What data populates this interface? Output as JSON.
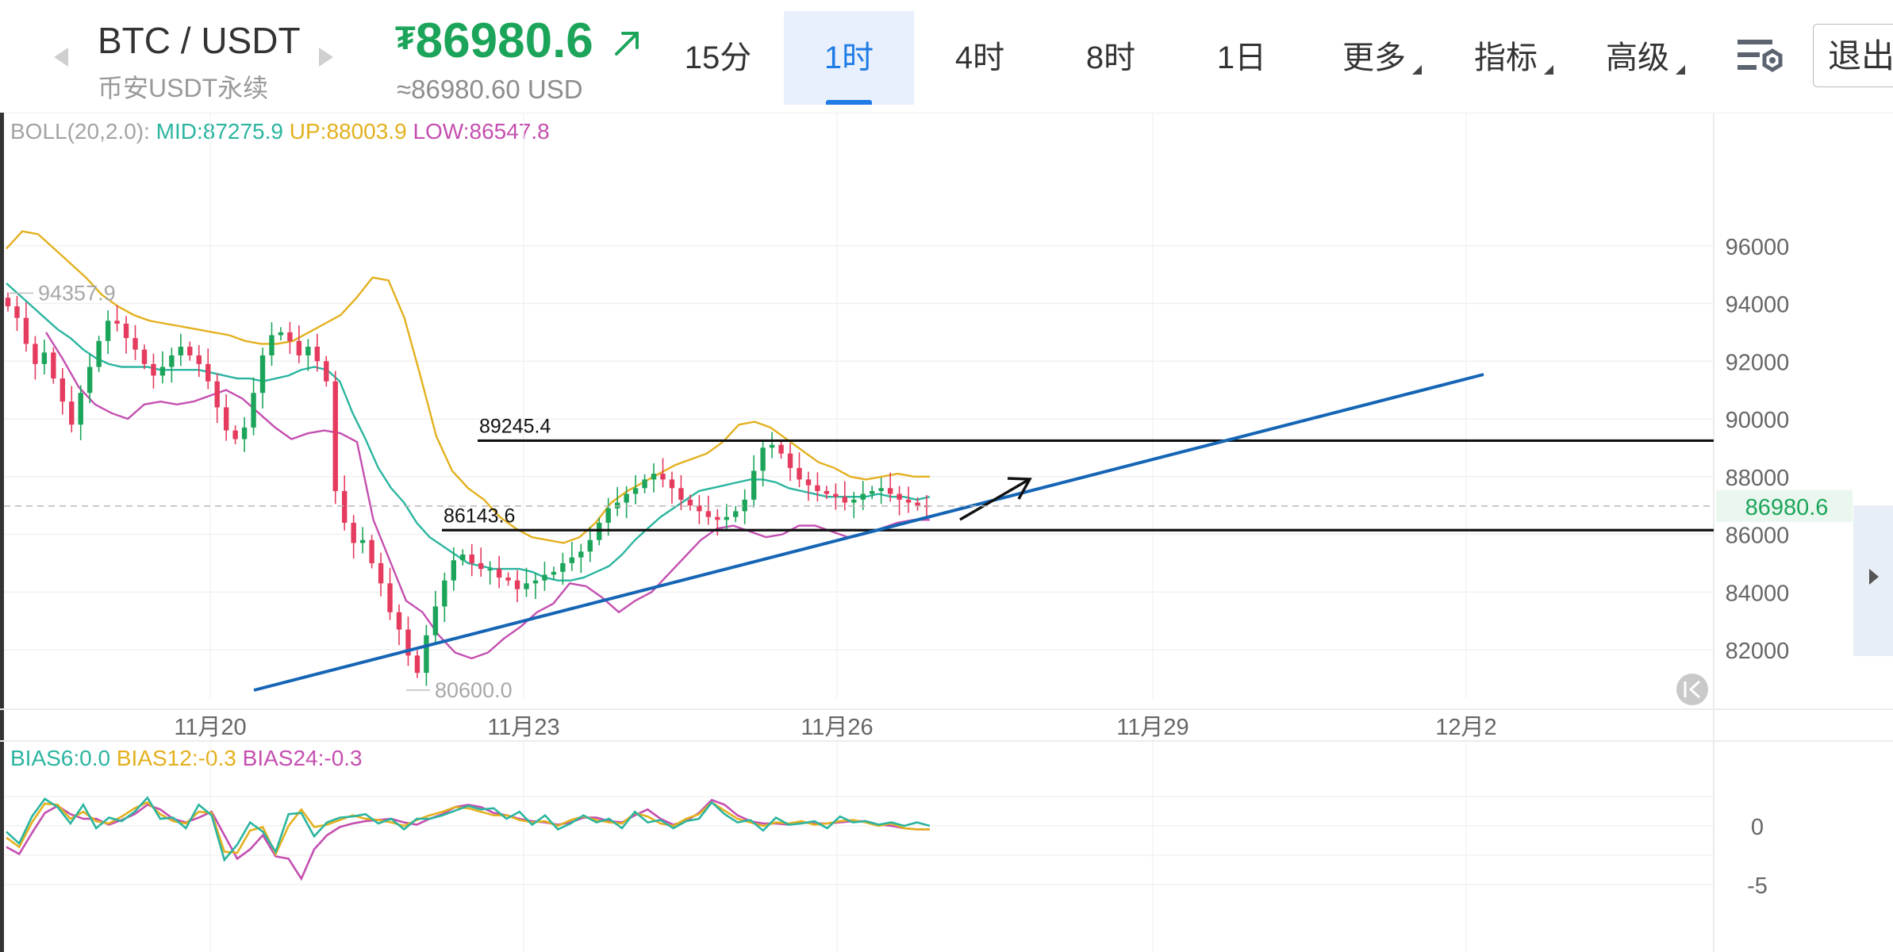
{
  "header": {
    "symbol": "BTC / USDT",
    "market": "币安USDT永续",
    "price_prefix": "₮",
    "price": "86980.6",
    "price_trend_icon": "arrow-up-right-icon",
    "price_usd": "≈86980.60 USD",
    "nav_prev_icon": "chevron-left-icon",
    "nav_next_icon": "chevron-right-icon"
  },
  "timeframes": [
    {
      "label": "15分",
      "active": false
    },
    {
      "label": "1时",
      "active": true
    },
    {
      "label": "4时",
      "active": false
    },
    {
      "label": "8时",
      "active": false
    },
    {
      "label": "1日",
      "active": false
    }
  ],
  "menus": [
    {
      "label": "更多"
    },
    {
      "label": "指标"
    },
    {
      "label": "高级"
    }
  ],
  "toolbar": {
    "settings_icon": "chart-settings-icon",
    "exit_label": "退出"
  },
  "boll": {
    "label": "BOLL(20,2.0):",
    "mid": "MID:87275.9",
    "up": "UP:88003.9",
    "low": "LOW:86547.8"
  },
  "bias": {
    "b6": "BIAS6:0.0",
    "b12": "BIAS12:-0.3",
    "b24": "BIAS24:-0.3"
  },
  "colors": {
    "accent": "#1f7be6",
    "up": "#1ca55a",
    "down": "#e53b5e",
    "mid": "#2bb5a0",
    "upper": "#e3b01e",
    "lower": "#c44fb0",
    "trendline": "#1565b5",
    "legend_gray": "#9b9b9b"
  },
  "chart_data": [
    {
      "type": "candlestick",
      "title": "BTC / USDT",
      "x_ticks": [
        "11月20",
        "11月23",
        "11月26",
        "11月29",
        "12月2"
      ],
      "y_ticks": [
        82000,
        84000,
        86000,
        88000,
        90000,
        92000,
        94000,
        96000
      ],
      "ylim": [
        79500,
        99800
      ],
      "current_price": 86980.6,
      "current_price_label": "86980.6",
      "high_marker": {
        "value": 94357.9,
        "label": "94357.9"
      },
      "low_marker": {
        "value": 80600.0,
        "label": "80600.0"
      },
      "horizontal_levels": [
        {
          "value": 89245.4,
          "label": "89245.4"
        },
        {
          "value": 86143.6,
          "label": "86143.6"
        }
      ],
      "trendline": {
        "from": {
          "date_index": 3,
          "value": 80600
        },
        "to": {
          "date_index": 41.5,
          "value": 91650
        }
      },
      "closes": [
        93900,
        93500,
        92600,
        91900,
        92300,
        91400,
        90600,
        89800,
        90900,
        91800,
        92700,
        93400,
        93300,
        92800,
        92400,
        91900,
        91500,
        91800,
        92200,
        92500,
        92200,
        91900,
        91300,
        90400,
        89600,
        89300,
        89700,
        90900,
        92200,
        92900,
        93000,
        92700,
        92200,
        92500,
        92000,
        91300,
        87500,
        86400,
        85700,
        85800,
        85000,
        84300,
        83300,
        82700,
        81800,
        81200,
        82500,
        83500,
        84400,
        85100,
        85300,
        85000,
        84800,
        84800,
        84500,
        84400,
        84100,
        84300,
        84400,
        84600,
        84700,
        85000,
        85200,
        85400,
        85800,
        86400,
        86900,
        87100,
        87400,
        87600,
        87900,
        88100,
        87900,
        87600,
        87200,
        87000,
        86800,
        86600,
        86500,
        86600,
        86800,
        87200,
        88200,
        89000,
        89100,
        88800,
        88300,
        87900,
        87700,
        87500,
        87400,
        87300,
        87100,
        87200,
        87400,
        87500,
        87600,
        87400,
        87200,
        87100,
        87000,
        86980.6
      ],
      "boll_mid": [
        94700,
        94300,
        93900,
        93500,
        93100,
        92800,
        92400,
        92100,
        91900,
        91800,
        91800,
        91800,
        91700,
        91700,
        91700,
        91700,
        91600,
        91500,
        91400,
        91400,
        91300,
        91400,
        91500,
        91700,
        91800,
        91700,
        91300,
        90200,
        89300,
        88300,
        87600,
        87100,
        86400,
        85900,
        85600,
        85300,
        85000,
        84900,
        84800,
        84800,
        84800,
        84700,
        84500,
        84400,
        84400,
        84500,
        84700,
        84900,
        85300,
        85800,
        86200,
        86600,
        86900,
        87200,
        87500,
        87600,
        87700,
        87800,
        87900,
        87900,
        87800,
        87600,
        87500,
        87400,
        87300,
        87300,
        87300,
        87300,
        87400,
        87300,
        87300,
        87200,
        87300
      ],
      "boll_up": [
        95900,
        96500,
        96400,
        95900,
        95400,
        94900,
        94300,
        93900,
        93600,
        93400,
        93300,
        93200,
        93100,
        93000,
        92900,
        92700,
        92600,
        92600,
        92700,
        93000,
        93300,
        93600,
        94200,
        94900,
        94800,
        93500,
        91500,
        89400,
        88200,
        87600,
        87200,
        86600,
        86200,
        85900,
        85800,
        85700,
        85900,
        86400,
        87100,
        87500,
        87800,
        88100,
        88400,
        88600,
        88800,
        89200,
        89800,
        89900,
        89700,
        89300,
        88900,
        88500,
        88300,
        88000,
        87900,
        88000,
        88100,
        88000,
        88000
      ],
      "boll_low": [
        93000,
        92100,
        91100,
        90500,
        90200,
        90000,
        90500,
        90600,
        90500,
        90600,
        90800,
        91000,
        90700,
        90200,
        89700,
        89300,
        89500,
        89600,
        89500,
        89200,
        86500,
        85100,
        83700,
        83300,
        82500,
        81900,
        81700,
        81900,
        82400,
        82800,
        83300,
        83600,
        84300,
        84200,
        83800,
        83300,
        83700,
        84000,
        84600,
        85200,
        85800,
        86200,
        86300,
        86100,
        85900,
        86000,
        86300,
        86300,
        86100,
        85900,
        86000,
        86200,
        86400,
        86500,
        86500
      ]
    },
    {
      "type": "line",
      "title": "BIAS",
      "y_ticks": [
        0,
        -5
      ],
      "series": [
        {
          "name": "BIAS6",
          "values": [
            -0.5,
            -1.5,
            0.8,
            2.3,
            1.6,
            0.2,
            1.8,
            -0.2,
            0.7,
            0.4,
            1.2,
            2.4,
            0.6,
            0.7,
            -0.2,
            1.8,
            0.9,
            -2.9,
            -1.6,
            0.3,
            -0.5,
            -2.2,
            1.0,
            1.1,
            -0.9,
            0.3,
            0.7,
            0.8,
            1.0,
            0.2,
            0.6,
            -0.3,
            0.6,
            0.6,
            0.9,
            1.3,
            1.7,
            1.4,
            1.5,
            0.6,
            1.2,
            0.1,
            0.9,
            -0.3,
            0.2,
            0.9,
            0.3,
            0.6,
            -0.2,
            1.2,
            0.3,
            0.5,
            -0.2,
            0.4,
            0.6,
            2.0,
            1.0,
            0.3,
            0.5,
            -0.4,
            0.7,
            0.1,
            0.2,
            0.4,
            -0.2,
            0.8,
            0.3,
            0.4,
            0.1,
            0.3,
            0.0,
            0.3,
            0.0
          ]
        },
        {
          "name": "BIAS12",
          "values": [
            -1.0,
            -1.8,
            0.3,
            1.9,
            1.8,
            0.6,
            1.2,
            0.4,
            0.2,
            0.8,
            1.5,
            2.0,
            1.0,
            0.4,
            0.2,
            1.2,
            1.1,
            -2.2,
            -2.3,
            -0.4,
            -0.1,
            -2.4,
            0.0,
            1.4,
            -0.1,
            0.1,
            0.5,
            0.9,
            0.6,
            0.5,
            0.3,
            0.0,
            0.5,
            0.9,
            1.2,
            1.6,
            1.5,
            1.2,
            0.9,
            0.9,
            0.5,
            0.3,
            0.4,
            0.0,
            0.5,
            0.8,
            0.5,
            0.3,
            0.2,
            1.1,
            0.8,
            0.2,
            0.0,
            0.6,
            1.0,
            2.0,
            1.3,
            0.6,
            0.3,
            0.0,
            0.3,
            0.2,
            0.4,
            0.1,
            0.2,
            0.4,
            0.5,
            0.3,
            0.0,
            0.2,
            -0.2,
            -0.3,
            -0.3
          ]
        },
        {
          "name": "BIAS24",
          "values": [
            -1.8,
            -2.4,
            -0.6,
            1.1,
            1.7,
            1.0,
            0.6,
            0.6,
            0.1,
            0.5,
            1.0,
            1.8,
            1.4,
            0.6,
            0.3,
            0.7,
            1.2,
            -0.8,
            -2.8,
            -2.0,
            -0.8,
            -2.6,
            -2.8,
            -4.5,
            -2.0,
            -0.8,
            -0.1,
            0.2,
            0.4,
            0.5,
            0.6,
            0.3,
            0.1,
            0.6,
            1.0,
            1.6,
            1.8,
            1.6,
            1.1,
            0.9,
            0.6,
            0.4,
            0.3,
            0.1,
            0.3,
            0.7,
            0.7,
            0.4,
            0.3,
            0.9,
            1.4,
            0.6,
            0.1,
            0.4,
            1.1,
            2.2,
            1.8,
            0.9,
            0.4,
            0.2,
            0.2,
            0.1,
            0.3,
            0.2,
            0.2,
            0.3,
            0.4,
            0.4,
            0.1,
            0.0,
            -0.2,
            -0.3,
            -0.3
          ]
        }
      ]
    }
  ]
}
